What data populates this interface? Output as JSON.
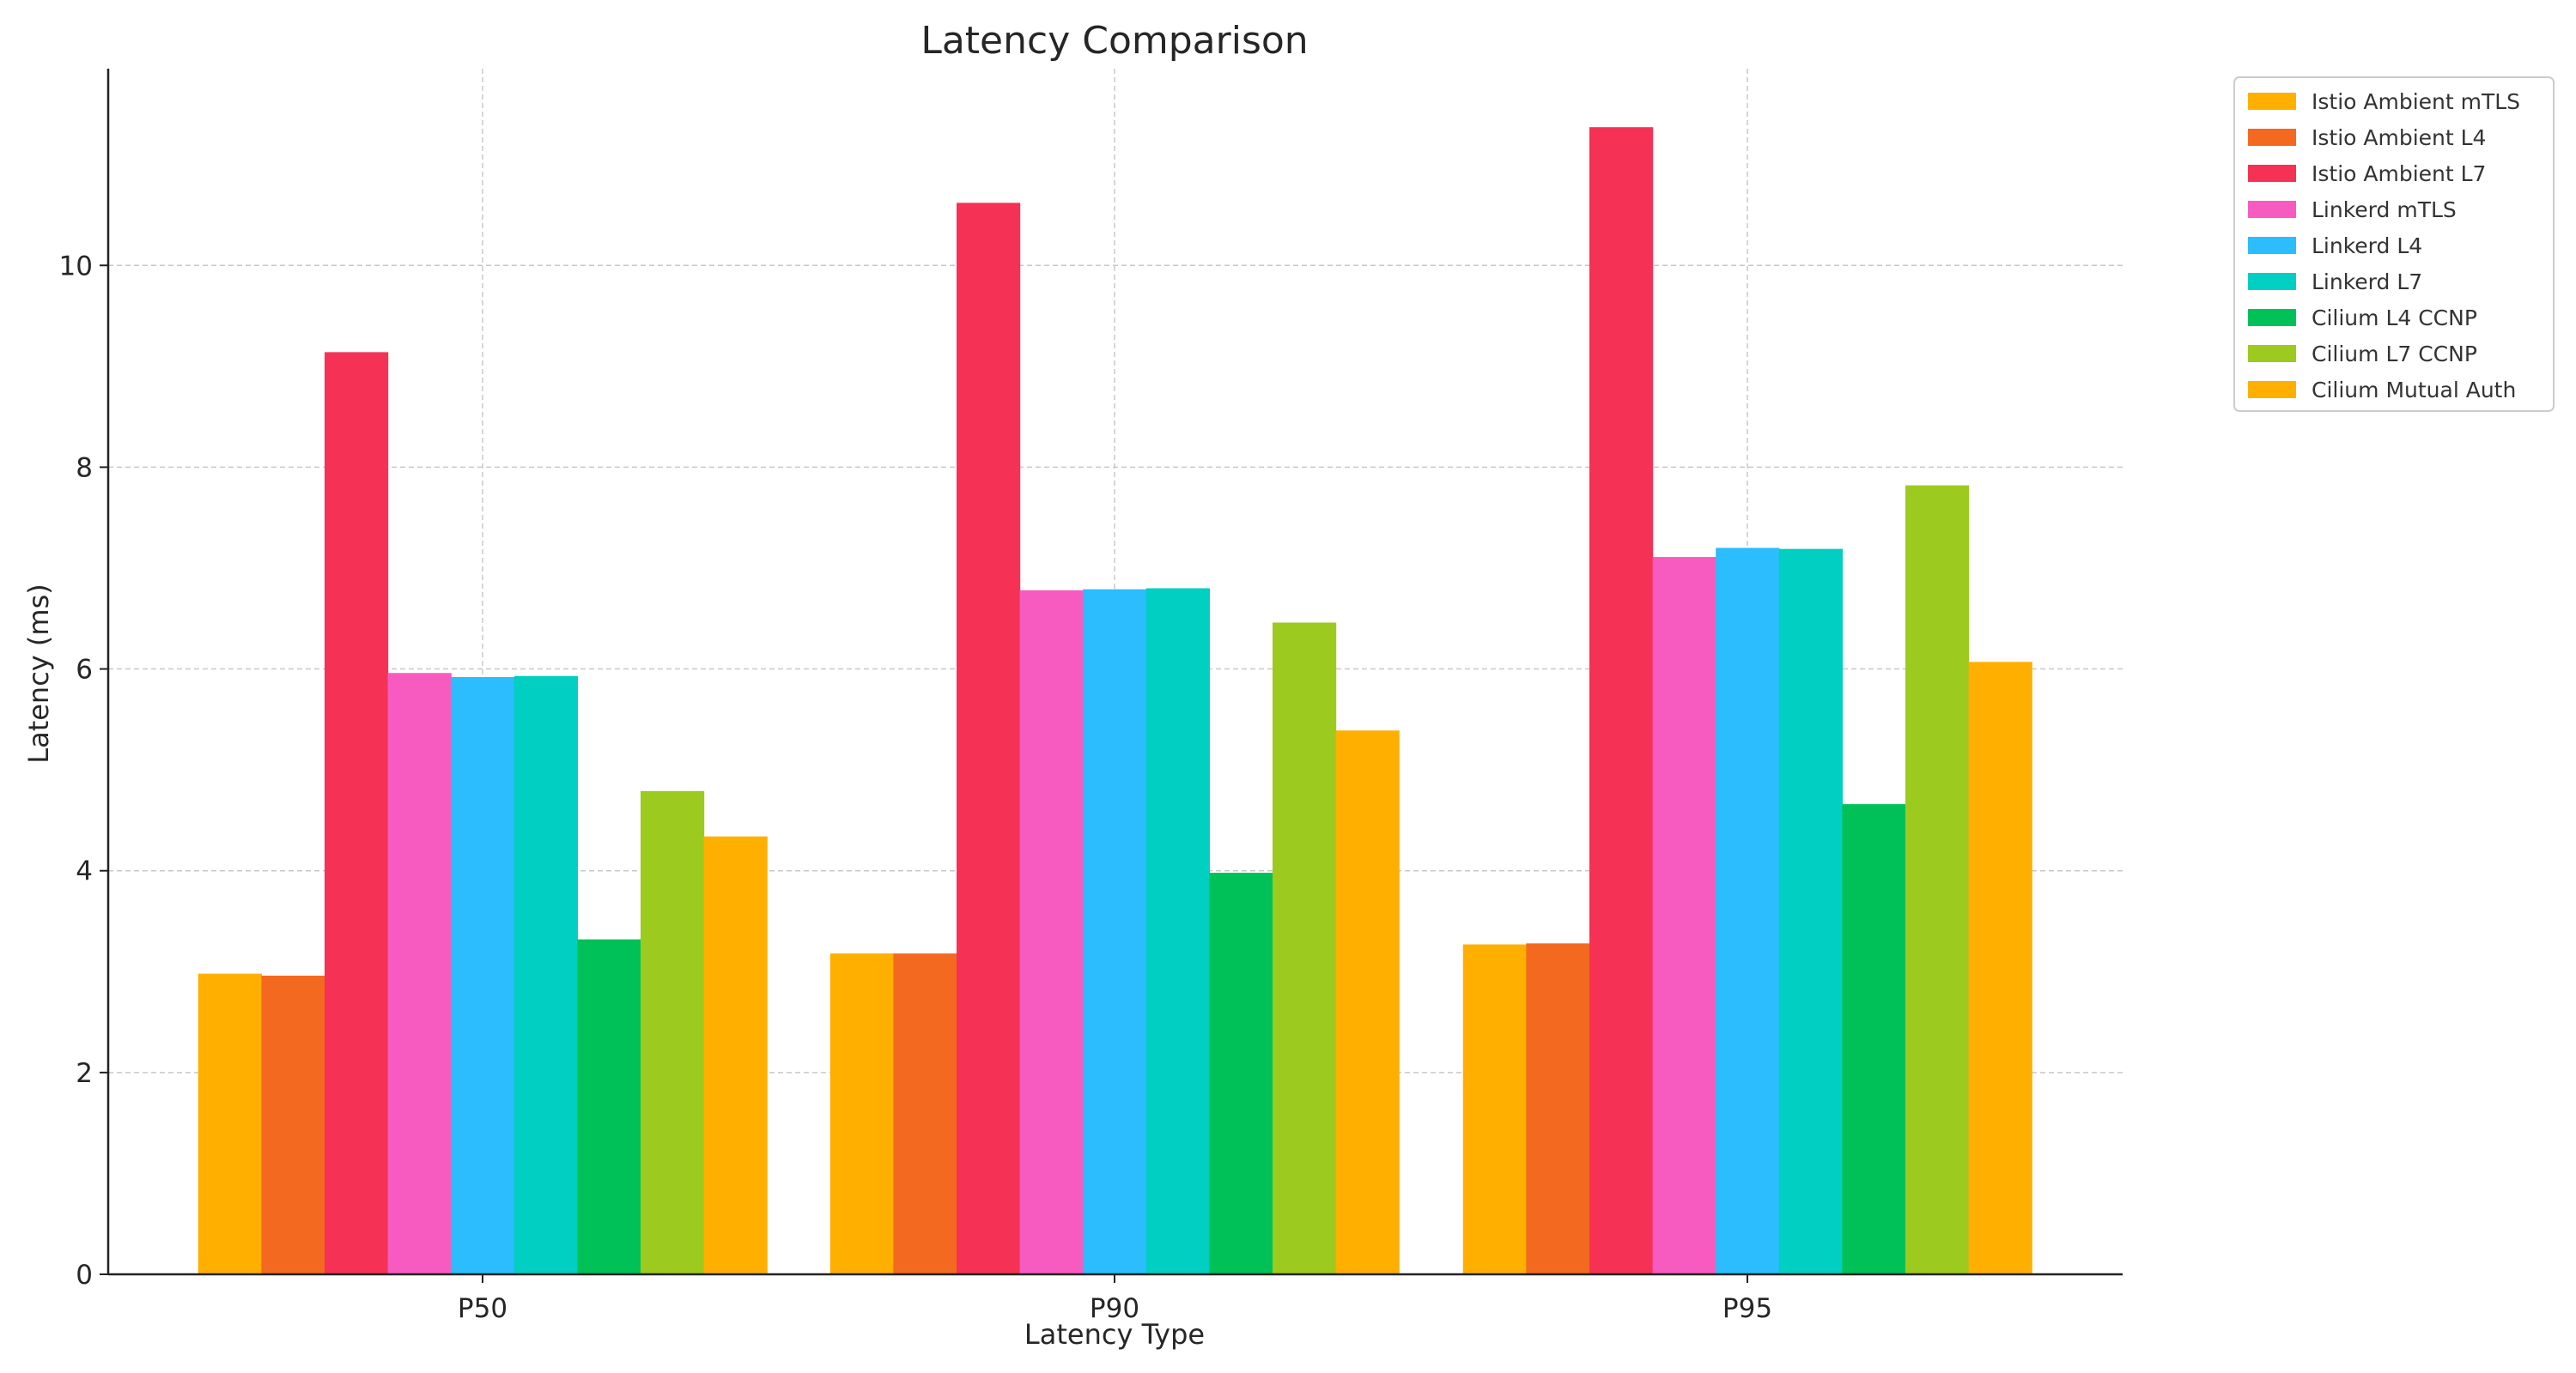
{
  "chart_data": {
    "type": "bar",
    "title": "Latency Comparison",
    "xlabel": "Latency Type",
    "ylabel": "Latency (ms)",
    "categories": [
      "P50",
      "P90",
      "P95"
    ],
    "ylim": [
      0,
      11.95
    ],
    "yticks": [
      0,
      2,
      4,
      6,
      8,
      10
    ],
    "grid": true,
    "legend_position": "outside top-right",
    "series": [
      {
        "name": "Istio Ambient mTLS",
        "color": "#FFAF00",
        "values": [
          2.98,
          3.18,
          3.27
        ]
      },
      {
        "name": "Istio Ambient L4",
        "color": "#F46920",
        "values": [
          2.96,
          3.18,
          3.28
        ]
      },
      {
        "name": "Istio Ambient L7",
        "color": "#F53255",
        "values": [
          9.14,
          10.62,
          11.37
        ]
      },
      {
        "name": "Linkerd mTLS",
        "color": "#F85BC0",
        "values": [
          5.96,
          6.78,
          7.11
        ]
      },
      {
        "name": "Linkerd L4",
        "color": "#2BBDFD",
        "values": [
          5.92,
          6.79,
          7.2
        ]
      },
      {
        "name": "Linkerd L7",
        "color": "#00CFC1",
        "values": [
          5.93,
          6.8,
          7.19
        ]
      },
      {
        "name": "Cilium L4 CCNP",
        "color": "#00C157",
        "values": [
          3.32,
          3.98,
          4.66
        ]
      },
      {
        "name": "Cilium L7 CCNP",
        "color": "#9DCA1F",
        "values": [
          4.79,
          6.46,
          7.82
        ]
      },
      {
        "name": "Cilium Mutual Auth",
        "color": "#FFAF00",
        "values": [
          4.34,
          5.39,
          6.07
        ]
      }
    ]
  }
}
